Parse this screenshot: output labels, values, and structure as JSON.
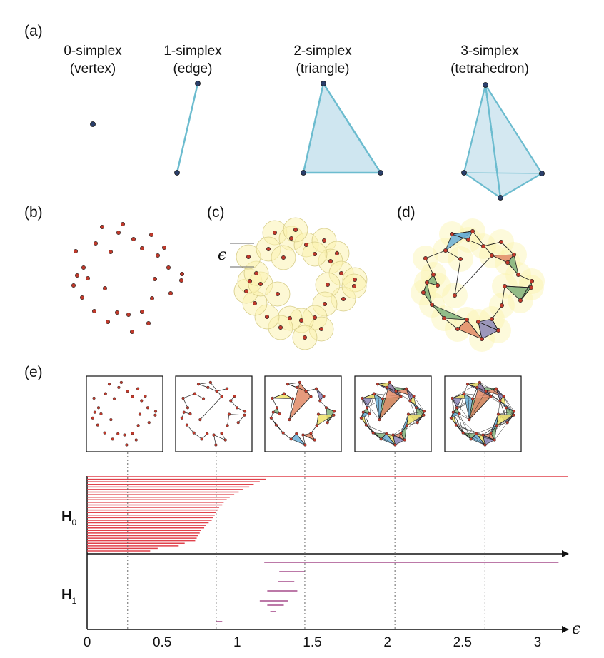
{
  "panel_labels": {
    "a": "(a)",
    "b": "(b)",
    "c": "(c)",
    "d": "(d)",
    "e": "(e)"
  },
  "simplices": [
    {
      "name": "0-simplex",
      "kind": "(vertex)"
    },
    {
      "name": "1-simplex",
      "kind": "(edge)"
    },
    {
      "name": "2-simplex",
      "kind": "(triangle)"
    },
    {
      "name": "3-simplex",
      "kind": "(tetrahedron)"
    }
  ],
  "epsilon_symbol": "ϵ",
  "colors": {
    "simplex_fill": "#cfe6f0",
    "simplex_edge": "#6cbccf",
    "point": "#c0392b",
    "vertex": "#2b3f6b",
    "ball": "#fbf3b0",
    "h0_bar": "#e0414b",
    "h1_bar": "#a64d8c",
    "tri_blue": "#6aaed6",
    "tri_green": "#7fb07a",
    "tri_orange": "#e08a66",
    "tri_purple": "#8b86b8",
    "tri_yellow": "#efe36a"
  },
  "chart_data": {
    "type": "barcode",
    "xlabel": "ϵ",
    "x_ticks": [
      "0",
      "0.5",
      "1",
      "1.5",
      "2",
      "2.5",
      "3"
    ],
    "xlim": [
      0,
      3.2
    ],
    "snapshot_eps": [
      0.27,
      0.86,
      1.45,
      2.05,
      2.65
    ],
    "groups": [
      {
        "name": "H0",
        "label_main": "H",
        "label_sub": "0",
        "bars": [
          [
            0,
            3.2
          ],
          [
            0,
            1.19
          ],
          [
            0,
            1.15
          ],
          [
            0,
            1.11
          ],
          [
            0,
            1.08
          ],
          [
            0,
            1.04
          ],
          [
            0,
            1.01
          ],
          [
            0,
            0.98
          ],
          [
            0,
            0.95
          ],
          [
            0,
            0.93
          ],
          [
            0,
            0.91
          ],
          [
            0,
            0.9
          ],
          [
            0,
            0.88
          ],
          [
            0,
            0.87
          ],
          [
            0,
            0.86
          ],
          [
            0,
            0.85
          ],
          [
            0,
            0.84
          ],
          [
            0,
            0.83
          ],
          [
            0,
            0.81
          ],
          [
            0,
            0.79
          ],
          [
            0,
            0.78
          ],
          [
            0,
            0.76
          ],
          [
            0,
            0.75
          ],
          [
            0,
            0.74
          ],
          [
            0,
            0.73
          ],
          [
            0,
            0.72
          ],
          [
            0,
            0.65
          ],
          [
            0,
            0.61
          ],
          [
            0,
            0.47
          ],
          [
            0,
            0.42
          ]
        ]
      },
      {
        "name": "H1",
        "label_main": "H",
        "label_sub": "1",
        "bars": [
          [
            1.18,
            3.14
          ],
          [
            1.28,
            1.45
          ],
          [
            1.27,
            1.38
          ],
          [
            1.2,
            1.4
          ],
          [
            1.15,
            1.34
          ],
          [
            1.2,
            1.31
          ],
          [
            1.22,
            1.26
          ],
          [
            0.86,
            0.9
          ]
        ]
      }
    ]
  }
}
